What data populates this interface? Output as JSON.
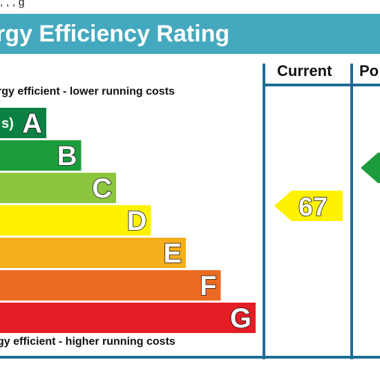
{
  "top_strip": {
    "text": ", ,                                             ,                            g"
  },
  "header": {
    "title": "rgy Efficiency Rating"
  },
  "notes": {
    "top": "rgy efficient - lower running costs",
    "bottom": "gy efficient - higher running costs"
  },
  "columns": {
    "current": "Current",
    "potential": "Po"
  },
  "chart_data": {
    "type": "bar",
    "title": "rgy Efficiency Rating",
    "categories": [
      "A",
      "B",
      "C",
      "D",
      "E",
      "F",
      "G"
    ],
    "band_labels": [
      "s)",
      "",
      "",
      "",
      "",
      "",
      ""
    ],
    "colors": [
      "#0c8042",
      "#1c9c3c",
      "#8cc63f",
      "#fff200",
      "#f7ae1d",
      "#ec6b22",
      "#e31d23"
    ],
    "current": {
      "value": 67,
      "band": "D",
      "color": "#fff200"
    },
    "potential": {
      "band": "B",
      "color": "#1c9c3c"
    }
  }
}
